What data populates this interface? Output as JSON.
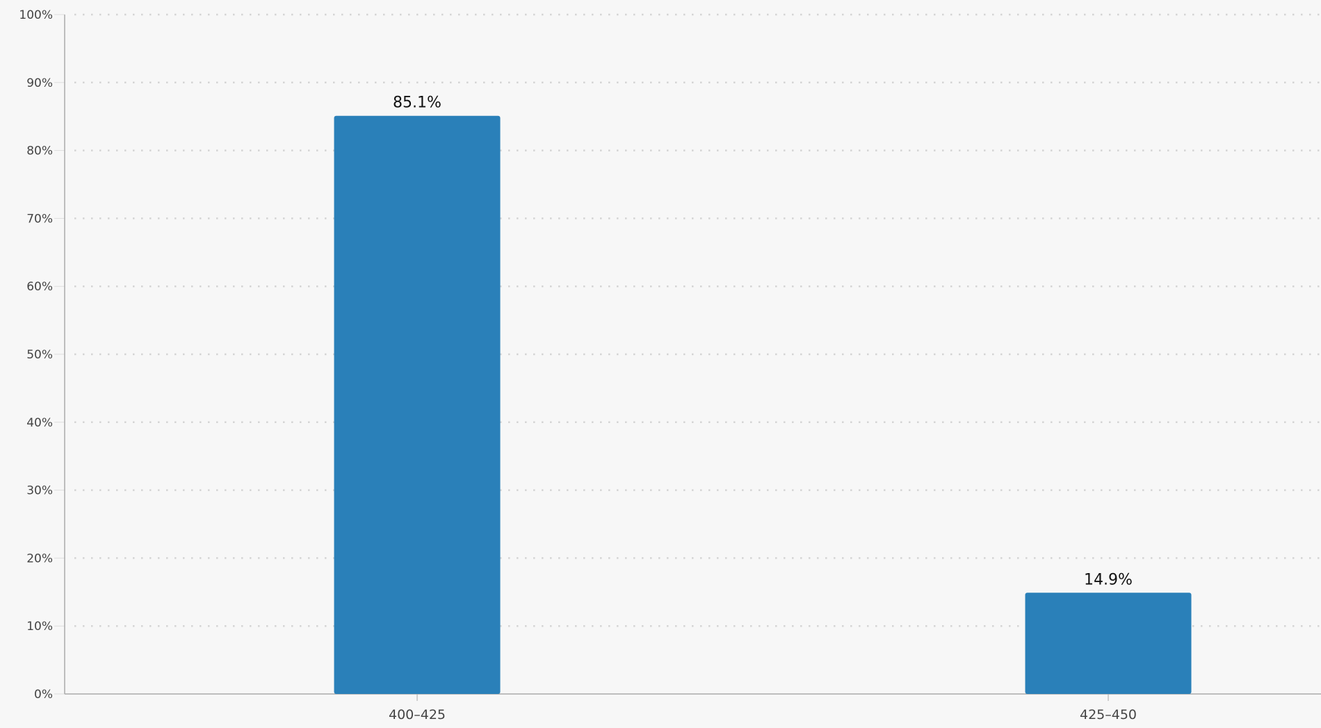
{
  "chart_data": {
    "type": "bar",
    "categories": [
      "400–425",
      "425–450"
    ],
    "values": [
      85.1,
      14.9
    ],
    "data_labels": [
      "85.1%",
      "14.9%"
    ],
    "ylim": [
      0,
      100
    ],
    "yticks": [
      "0%",
      "10%",
      "20%",
      "30%",
      "40%",
      "50%",
      "60%",
      "70%",
      "80%",
      "90%",
      "100%"
    ],
    "grid": true,
    "bar_color": "#2a80b9"
  }
}
